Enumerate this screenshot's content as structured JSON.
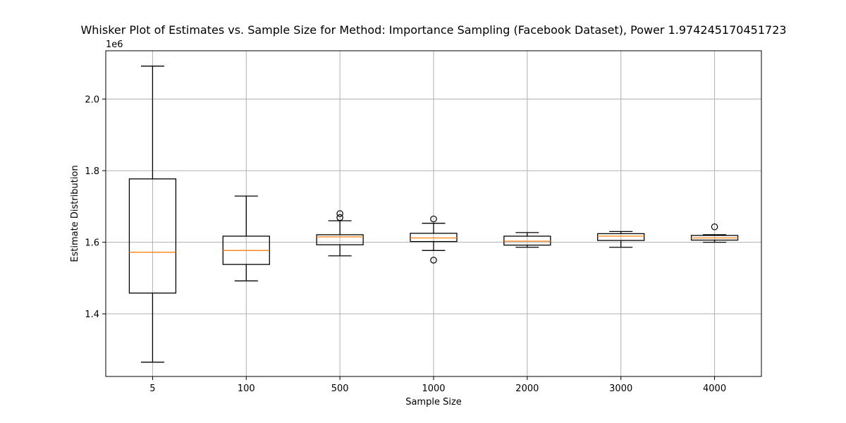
{
  "chart_data": {
    "type": "box",
    "title": "Whisker Plot of Estimates vs. Sample Size for Method: Importance Sampling (Facebook Dataset), Power 1.974245170451723",
    "xlabel": "Sample Size",
    "ylabel": "Estimate Distribution",
    "y_offset_label": "1e6",
    "ylim": [
      1.225,
      2.135
    ],
    "yticks": [
      1.4,
      1.6,
      1.8,
      2.0
    ],
    "ytick_labels": [
      "1.4",
      "1.6",
      "1.8",
      "2.0"
    ],
    "grid": true,
    "categories": [
      "5",
      "100",
      "500",
      "1000",
      "2000",
      "3000",
      "4000"
    ],
    "boxes": [
      {
        "category": "5",
        "whisker_low": 1.265,
        "q1": 1.458,
        "median": 1.572,
        "q3": 1.777,
        "whisker_high": 2.092,
        "outliers": []
      },
      {
        "category": "100",
        "whisker_low": 1.492,
        "q1": 1.538,
        "median": 1.577,
        "q3": 1.617,
        "whisker_high": 1.729,
        "outliers": []
      },
      {
        "category": "500",
        "whisker_low": 1.562,
        "q1": 1.593,
        "median": 1.615,
        "q3": 1.621,
        "whisker_high": 1.66,
        "outliers": [
          1.669,
          1.68
        ]
      },
      {
        "category": "1000",
        "whisker_low": 1.577,
        "q1": 1.602,
        "median": 1.612,
        "q3": 1.625,
        "whisker_high": 1.653,
        "outliers": [
          1.665,
          1.55
        ]
      },
      {
        "category": "2000",
        "whisker_low": 1.586,
        "q1": 1.592,
        "median": 1.603,
        "q3": 1.617,
        "whisker_high": 1.627,
        "outliers": []
      },
      {
        "category": "3000",
        "whisker_low": 1.586,
        "q1": 1.605,
        "median": 1.617,
        "q3": 1.624,
        "whisker_high": 1.63,
        "outliers": []
      },
      {
        "category": "4000",
        "whisker_low": 1.6,
        "q1": 1.606,
        "median": 1.612,
        "q3": 1.619,
        "whisker_high": 1.621,
        "outliers": [
          1.643
        ]
      }
    ],
    "colors": {
      "box": "#000000",
      "median": "#ff7f0e",
      "grid": "#b0b0b0"
    }
  }
}
